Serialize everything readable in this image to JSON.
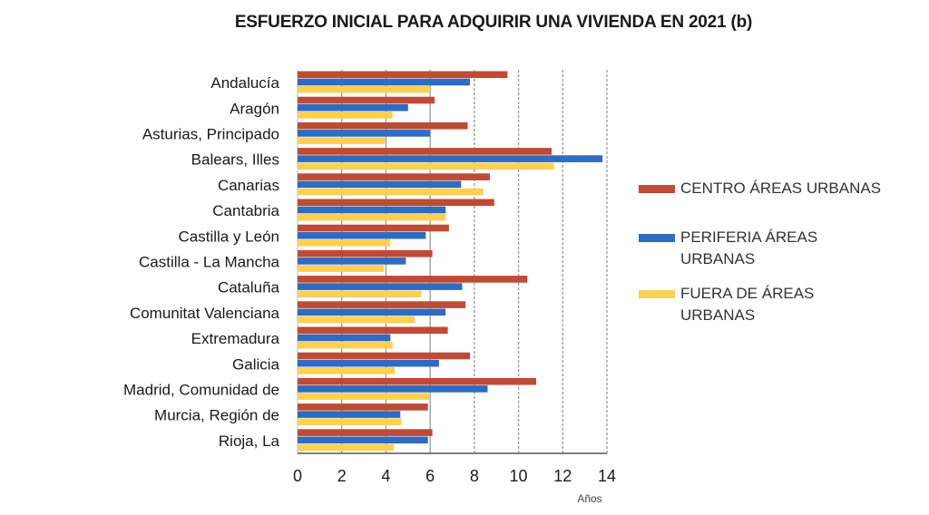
{
  "chart_data": {
    "type": "bar",
    "orientation": "horizontal",
    "title": "ESFUERZO INICIAL PARA ADQUIRIR UNA VIVIENDA EN 2021 (b)",
    "xlabel": "Años",
    "ylabel": "",
    "xlim": [
      0,
      14
    ],
    "xticks": [
      0,
      2,
      4,
      6,
      8,
      10,
      12,
      14
    ],
    "grid": "vertical dashed",
    "legend_position": "right",
    "categories": [
      "Andalucía",
      "Aragón",
      "Asturias, Principado",
      "Balears, Illes",
      "Canarias",
      "Cantabria",
      "Castilla y León",
      "Castilla - La Mancha",
      "Cataluña",
      "Comunitat Valenciana",
      "Extremadura",
      "Galicia",
      "Madrid, Comunidad de",
      "Murcia, Región de",
      "Rioja, La"
    ],
    "series": [
      {
        "name": "CENTRO ÁREAS URBANAS",
        "color": "#bf4a36",
        "values": [
          9.5,
          6.2,
          7.7,
          11.5,
          8.7,
          8.9,
          6.85,
          6.1,
          10.4,
          7.6,
          6.8,
          7.8,
          10.8,
          5.9,
          6.1
        ]
      },
      {
        "name": "PERIFERIA ÁREAS URBANAS",
        "color": "#2f6bbf",
        "values": [
          7.8,
          5.0,
          6.0,
          13.8,
          7.4,
          6.7,
          5.8,
          4.9,
          7.45,
          6.7,
          4.2,
          6.4,
          8.6,
          4.65,
          5.9
        ]
      },
      {
        "name": "FUERA DE ÁREAS URBANAS",
        "color": "#fccf55",
        "values": [
          6.0,
          4.3,
          3.95,
          11.6,
          8.4,
          6.7,
          4.2,
          3.9,
          5.6,
          5.3,
          4.3,
          4.4,
          5.95,
          4.7,
          4.35
        ]
      }
    ]
  },
  "legend": {
    "items": [
      {
        "label": "CENTRO ÁREAS URBANAS",
        "color": "#bf4a36"
      },
      {
        "label": "PERIFERIA ÁREAS URBANAS",
        "color": "#2f6bbf"
      },
      {
        "label": "FUERA DE ÁREAS URBANAS",
        "color": "#fccf55"
      }
    ]
  }
}
